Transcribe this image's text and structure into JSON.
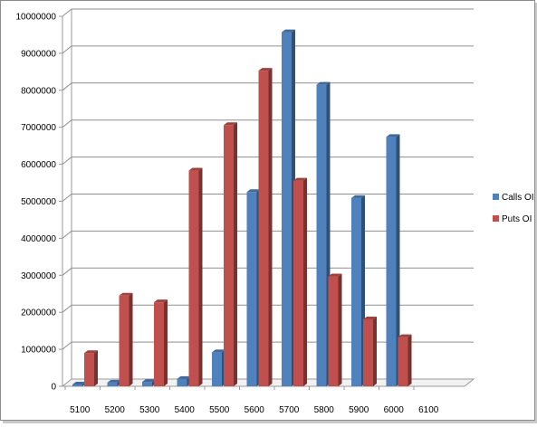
{
  "chart_data": {
    "type": "bar",
    "categories": [
      "5100",
      "5200",
      "5300",
      "5400",
      "5500",
      "5600",
      "5700",
      "5800",
      "5900",
      "6000",
      "6100"
    ],
    "series": [
      {
        "name": "Calls OI",
        "color": "#4f81bd",
        "values": [
          50000,
          100000,
          120000,
          200000,
          920000,
          5250000,
          9570000,
          8150000,
          5090000,
          6740000,
          0
        ]
      },
      {
        "name": "Puts OI",
        "color": "#c0504d",
        "values": [
          900000,
          2450000,
          2270000,
          5830000,
          7060000,
          8530000,
          5560000,
          2970000,
          1810000,
          1330000,
          0
        ]
      }
    ],
    "ylim": [
      0,
      10000000
    ],
    "yticks": [
      "0",
      "1000000",
      "2000000",
      "3000000",
      "4000000",
      "5000000",
      "6000000",
      "7000000",
      "8000000",
      "9000000",
      "10000000"
    ],
    "grid": true,
    "legend": "right",
    "title": "",
    "xlabel": "",
    "ylabel": ""
  }
}
